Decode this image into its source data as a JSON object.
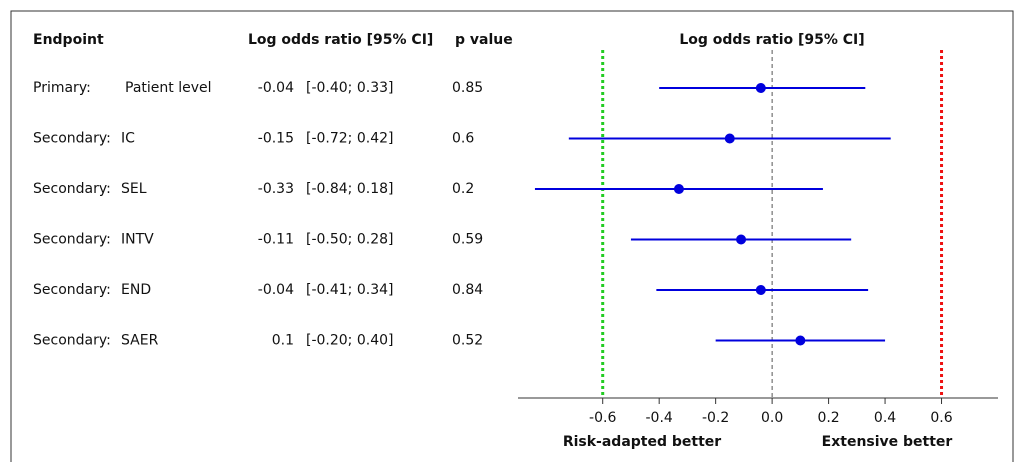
{
  "chart_data": {
    "type": "forest",
    "headers": {
      "endpoint": "Endpoint",
      "estimate": "Log odds ratio [95% CI]",
      "p": "p value"
    },
    "title": "Log odds ratio [95% CI]",
    "categories": [
      "Primary:",
      "Secondary:",
      "Secondary:",
      "Secondary:",
      "Secondary:",
      "Secondary:"
    ],
    "subcategories": [
      "Patient level",
      "IC",
      "SEL",
      "INTV",
      "END",
      "SAER"
    ],
    "values": [
      -0.04,
      -0.15,
      -0.33,
      -0.11,
      -0.04,
      0.1
    ],
    "lower": [
      -0.4,
      -0.72,
      -0.84,
      -0.5,
      -0.41,
      -0.2
    ],
    "upper": [
      0.33,
      0.42,
      0.18,
      0.28,
      0.34,
      0.4
    ],
    "ci_labels": [
      "[-0.40; 0.33]",
      "[-0.72; 0.42]",
      "[-0.84; 0.18]",
      "[-0.50; 0.28]",
      "[-0.41; 0.34]",
      "[-0.20; 0.40]"
    ],
    "p_values": [
      0.85,
      0.6,
      0.2,
      0.59,
      0.84,
      0.52
    ],
    "color": "#0000dd",
    "xlim": [
      -0.9,
      0.8
    ],
    "xticks": [
      -0.6,
      -0.4,
      -0.2,
      {
        "value": 0,
        "label": "0.0"
      },
      0.2,
      0.4,
      0.6
    ],
    "reference_lines": [
      {
        "value": -0.6,
        "color": "#22cc22"
      },
      {
        "value": 0,
        "color": "#555555"
      },
      {
        "value": 0.6,
        "color": "#ee1111"
      }
    ],
    "left_label": "Risk-adapted better",
    "right_label": "Extensive better"
  }
}
